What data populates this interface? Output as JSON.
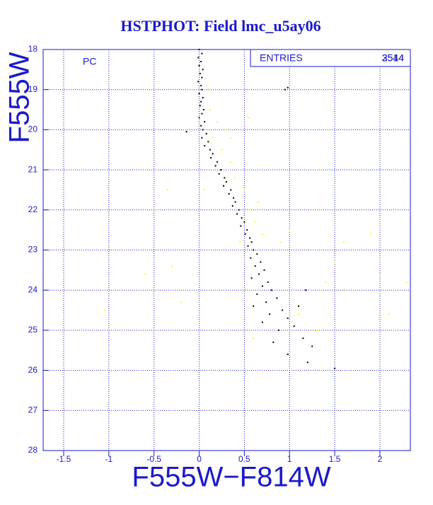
{
  "chart_data": {
    "type": "scatter",
    "title": "HSTPHOT: Field lmc_u5ay06",
    "x_label": "F555W−F814W",
    "y_label": "F555W",
    "annotations": {
      "panel": "PC",
      "entries_label": "ENTRIES",
      "entries_values": [
        "2544",
        "3514"
      ]
    },
    "xlim": [
      -1.727,
      2.337
    ],
    "ylim": [
      18,
      28
    ],
    "y_inverted": true,
    "xticks": [
      -1.5,
      -1,
      -0.5,
      0,
      0.5,
      1,
      1.5,
      2
    ],
    "yticks": [
      18,
      19,
      20,
      21,
      22,
      23,
      24,
      25,
      26,
      27,
      28
    ],
    "grid": true,
    "series": [
      {
        "color": "#ffff00",
        "x": [
          0.1,
          0.12,
          0.2,
          0.3,
          0.25,
          0.35,
          0.4,
          0.5,
          0.55,
          0.62,
          0.7,
          0.8,
          0.9,
          1.2,
          1.5,
          1.9,
          2.0,
          2.3,
          1.6,
          -0.3,
          -0.5,
          -0.6,
          -1.05,
          -0.35,
          0.15,
          0.45,
          1.3,
          1.1,
          0.6,
          2.1,
          -0.2,
          0.05,
          0.8,
          1.0,
          1.6,
          0.55,
          1.4,
          0.3,
          0.65,
          0.35
        ],
        "y": [
          19.0,
          19.5,
          19.8,
          20.0,
          20.5,
          20.8,
          21.2,
          21.5,
          22.0,
          22.3,
          22.6,
          23.0,
          22.8,
          23.0,
          23.3,
          22.6,
          23.6,
          23.8,
          24.0,
          23.4,
          22.0,
          23.6,
          24.5,
          21.5,
          20.2,
          22.8,
          25.0,
          24.6,
          25.2,
          24.6,
          24.3,
          21.5,
          20.0,
          22.5,
          22.8,
          19.7,
          23.8,
          21.3,
          21.8,
          20.2
        ]
      },
      {
        "color": "#000000",
        "x": [
          0.0,
          0.03,
          -0.01,
          0.02,
          0.0,
          0.04,
          0.01,
          0.03,
          -0.01,
          0.02,
          0.03,
          0.0,
          0.04,
          0.02,
          0.01,
          0.05,
          0.03,
          0.0,
          0.06,
          0.02,
          0.04,
          0.08,
          0.03,
          0.1,
          0.06,
          0.12,
          0.15,
          0.13,
          0.2,
          0.18,
          0.24,
          0.22,
          0.28,
          0.3,
          0.27,
          0.35,
          0.33,
          0.38,
          0.4,
          0.37,
          0.44,
          0.42,
          0.47,
          0.5,
          0.46,
          0.53,
          0.51,
          0.56,
          0.58,
          0.54,
          0.6,
          0.64,
          0.57,
          0.68,
          0.62,
          0.72,
          0.66,
          0.58,
          0.76,
          0.7,
          0.8,
          0.64,
          0.86,
          0.74,
          0.6,
          0.92,
          0.78,
          0.98,
          0.7,
          1.05,
          0.88,
          1.15,
          0.82,
          1.25,
          0.98,
          1.2,
          1.5,
          0.98,
          0.95,
          -0.14,
          1.1,
          1.18
        ],
        "y": [
          18.0,
          18.1,
          18.2,
          18.3,
          18.4,
          18.5,
          18.6,
          18.7,
          18.8,
          18.9,
          19.0,
          19.1,
          19.2,
          19.3,
          19.4,
          19.5,
          19.6,
          19.7,
          19.8,
          19.9,
          20.0,
          20.1,
          20.2,
          20.3,
          20.4,
          20.5,
          20.6,
          20.7,
          20.8,
          20.9,
          21.0,
          21.1,
          21.2,
          21.3,
          21.4,
          21.5,
          21.6,
          21.7,
          21.8,
          21.9,
          22.0,
          22.1,
          22.2,
          22.3,
          22.4,
          22.5,
          22.6,
          22.7,
          22.8,
          22.9,
          23.0,
          23.1,
          23.2,
          23.3,
          23.4,
          23.5,
          23.6,
          23.7,
          23.8,
          23.9,
          24.0,
          24.1,
          24.2,
          24.3,
          24.4,
          24.5,
          24.6,
          24.7,
          24.8,
          24.9,
          25.0,
          25.2,
          25.3,
          25.4,
          25.6,
          25.8,
          25.95,
          18.95,
          19.0,
          20.05,
          24.4,
          24.0
        ]
      }
    ]
  }
}
